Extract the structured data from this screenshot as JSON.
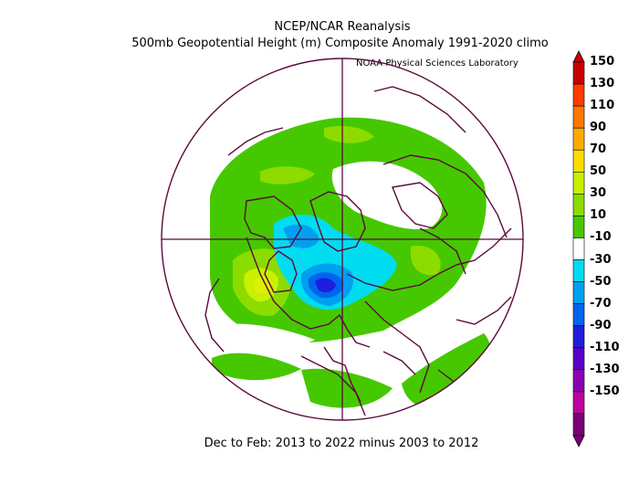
{
  "header": {
    "title": "NCEP/NCAR Reanalysis",
    "subtitle": "500mb Geopotential Height (m) Composite Anomaly 1991-2020 climo",
    "lab": "NOAA Physical Sciences Laboratory"
  },
  "footer": {
    "period": "Dec to Feb: 2013 to 2022 minus 2003 to 2012"
  },
  "colorbar": {
    "levels": [
      "150",
      "130",
      "110",
      "90",
      "70",
      "50",
      "30",
      "10",
      "-10",
      "-30",
      "-50",
      "-70",
      "-90",
      "-110",
      "-130",
      "-150"
    ],
    "colors": [
      "#c80000",
      "#ff3c00",
      "#ff7800",
      "#ffaa00",
      "#ffdc00",
      "#c8f000",
      "#8cdc00",
      "#46c800",
      "#ffffff",
      "#00dcf0",
      "#00a0f0",
      "#0064f0",
      "#1e1edc",
      "#5a00c8",
      "#8c00b4",
      "#be00a0",
      "#780078"
    ],
    "anomaly_colors": {
      "pos10": "#46c800",
      "pos30": "#8cdc00",
      "pos50": "#c8f000",
      "neg10": "#00dcf0",
      "neg30": "#00a0f0",
      "neg50": "#0064f0",
      "neg70": "#1e1edc"
    }
  }
}
